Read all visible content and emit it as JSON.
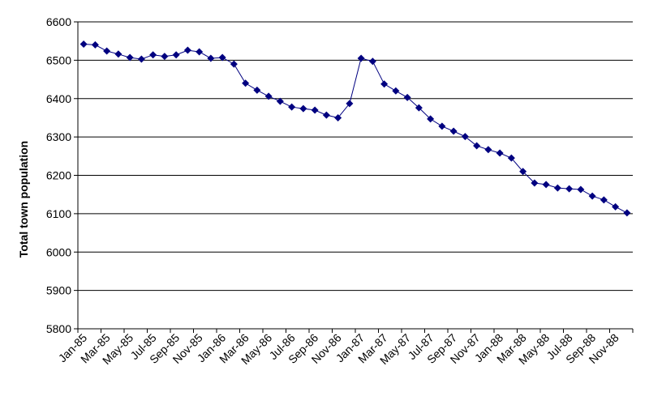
{
  "chart_data": {
    "type": "line",
    "y_label": "Total town population",
    "categories": [
      "Jan-85",
      null,
      "Mar-85",
      null,
      "May-85",
      null,
      "Jul-85",
      null,
      "Sep-85",
      null,
      "Nov-85",
      null,
      "Jan-86",
      null,
      "Mar-86",
      null,
      "May-86",
      null,
      "Jul-86",
      null,
      "Sep-86",
      null,
      "Nov-86",
      null,
      "Jan-87",
      null,
      "Mar-87",
      null,
      "May-87",
      null,
      "Jul-87",
      null,
      "Sep-87",
      null,
      "Nov-87",
      null,
      "Jan-88",
      null,
      "Mar-88",
      null,
      "May-88",
      null,
      "Jul-88",
      null,
      "Sep-88",
      null,
      "Nov-88",
      null
    ],
    "values": [
      6542,
      6540,
      6524,
      6516,
      6507,
      6503,
      6514,
      6510,
      6514,
      6526,
      6522,
      6505,
      6507,
      6490,
      6440,
      6422,
      6406,
      6393,
      6378,
      6374,
      6370,
      6357,
      6350,
      6387,
      6505,
      6497,
      6438,
      6420,
      6403,
      6376,
      6347,
      6328,
      6315,
      6301,
      6277,
      6267,
      6258,
      6245,
      6210,
      6180,
      6176,
      6167,
      6165,
      6163,
      6146,
      6136,
      6118,
      6102
    ],
    "color": "#000080",
    "ylim": [
      5800,
      6600
    ],
    "yticks": [
      5800,
      5900,
      6000,
      6100,
      6200,
      6300,
      6400,
      6500,
      6600
    ],
    "grid": true
  }
}
